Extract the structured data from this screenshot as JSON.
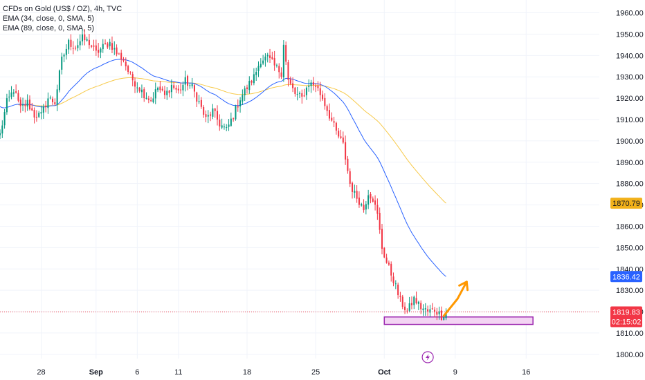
{
  "legend": {
    "title": "CFDs on Gold (US$ / OZ), 4h, TVC",
    "ema1": "EMA (34, close, 0, SMA, 5)",
    "ema2": "EMA (89, close, 0, SMA, 5)"
  },
  "colors": {
    "up": "#089981",
    "down": "#f23645",
    "ema34": "#2962ff",
    "ema89": "#f7c948",
    "current": "#f23645",
    "ema89_tag": "#f2b11a",
    "ema34_tag": "#2962ff",
    "box_fill": "#f3d4f3",
    "box_stroke": "#9c27b0",
    "arrow": "#ff9800",
    "grid": "#f0f3fa"
  },
  "chart_data": {
    "type": "candlestick",
    "ylim": [
      1798,
      1966
    ],
    "xlim": [
      0,
      262
    ],
    "y_ticks": [
      1800,
      1810,
      1820,
      1830,
      1840,
      1850,
      1860,
      1870,
      1880,
      1890,
      1900,
      1910,
      1920,
      1930,
      1940,
      1950,
      1960
    ],
    "x_ticks": [
      {
        "label": "28",
        "bar": 18,
        "bold": false
      },
      {
        "label": "Sep",
        "bar": 42,
        "bold": true
      },
      {
        "label": "6",
        "bar": 60,
        "bold": false
      },
      {
        "label": "11",
        "bar": 78,
        "bold": false
      },
      {
        "label": "18",
        "bar": 108,
        "bold": false
      },
      {
        "label": "25",
        "bar": 138,
        "bold": false
      },
      {
        "label": "Oct",
        "bar": 168,
        "bold": true
      },
      {
        "label": "9",
        "bar": 199,
        "bold": false
      },
      {
        "label": "16",
        "bar": 230,
        "bold": false
      }
    ],
    "price_tags": {
      "ema89": {
        "value": 1870.79,
        "label": "1870.79"
      },
      "ema34": {
        "value": 1836.42,
        "label": "1836.42"
      },
      "current": {
        "value": 1819.83,
        "label": "1819.83",
        "countdown": "02:15:02"
      }
    },
    "support_zone": {
      "bar_start": 168,
      "bar_end": 233,
      "low": 1814,
      "high": 1817.5
    },
    "forecast_arrow": [
      [
        194,
        1818
      ],
      [
        200,
        1826
      ],
      [
        204,
        1834
      ]
    ],
    "anchors": [
      [
        0,
        1903
      ],
      [
        3,
        1918
      ],
      [
        6,
        1924
      ],
      [
        9,
        1915
      ],
      [
        12,
        1918
      ],
      [
        15,
        1912
      ],
      [
        18,
        1912
      ],
      [
        21,
        1920
      ],
      [
        24,
        1918
      ],
      [
        27,
        1938
      ],
      [
        30,
        1946
      ],
      [
        33,
        1944
      ],
      [
        36,
        1948
      ],
      [
        39,
        1946
      ],
      [
        42,
        1941
      ],
      [
        45,
        1944
      ],
      [
        48,
        1946
      ],
      [
        51,
        1941
      ],
      [
        54,
        1938
      ],
      [
        57,
        1930
      ],
      [
        60,
        1926
      ],
      [
        63,
        1922
      ],
      [
        66,
        1919
      ],
      [
        69,
        1925
      ],
      [
        72,
        1921
      ],
      [
        75,
        1926
      ],
      [
        78,
        1923
      ],
      [
        81,
        1928
      ],
      [
        84,
        1925
      ],
      [
        87,
        1918
      ],
      [
        90,
        1910
      ],
      [
        93,
        1914
      ],
      [
        96,
        1908
      ],
      [
        99,
        1905
      ],
      [
        102,
        1912
      ],
      [
        105,
        1920
      ],
      [
        108,
        1925
      ],
      [
        111,
        1930
      ],
      [
        114,
        1938
      ],
      [
        117,
        1939
      ],
      [
        120,
        1935
      ],
      [
        123,
        1932
      ],
      [
        124,
        1946
      ],
      [
        126,
        1928
      ],
      [
        129,
        1922
      ],
      [
        132,
        1920
      ],
      [
        135,
        1927
      ],
      [
        138,
        1926
      ],
      [
        141,
        1920
      ],
      [
        144,
        1912
      ],
      [
        147,
        1904
      ],
      [
        150,
        1898
      ],
      [
        153,
        1880
      ],
      [
        155,
        1875
      ],
      [
        157,
        1872
      ],
      [
        159,
        1868
      ],
      [
        161,
        1876
      ],
      [
        163,
        1873
      ],
      [
        165,
        1865
      ],
      [
        167,
        1850
      ],
      [
        169,
        1843
      ],
      [
        172,
        1835
      ],
      [
        175,
        1825
      ],
      [
        178,
        1820
      ],
      [
        181,
        1826
      ],
      [
        184,
        1822
      ],
      [
        187,
        1820
      ],
      [
        190,
        1821
      ],
      [
        193,
        1818
      ],
      [
        195,
        1819.83
      ]
    ]
  }
}
